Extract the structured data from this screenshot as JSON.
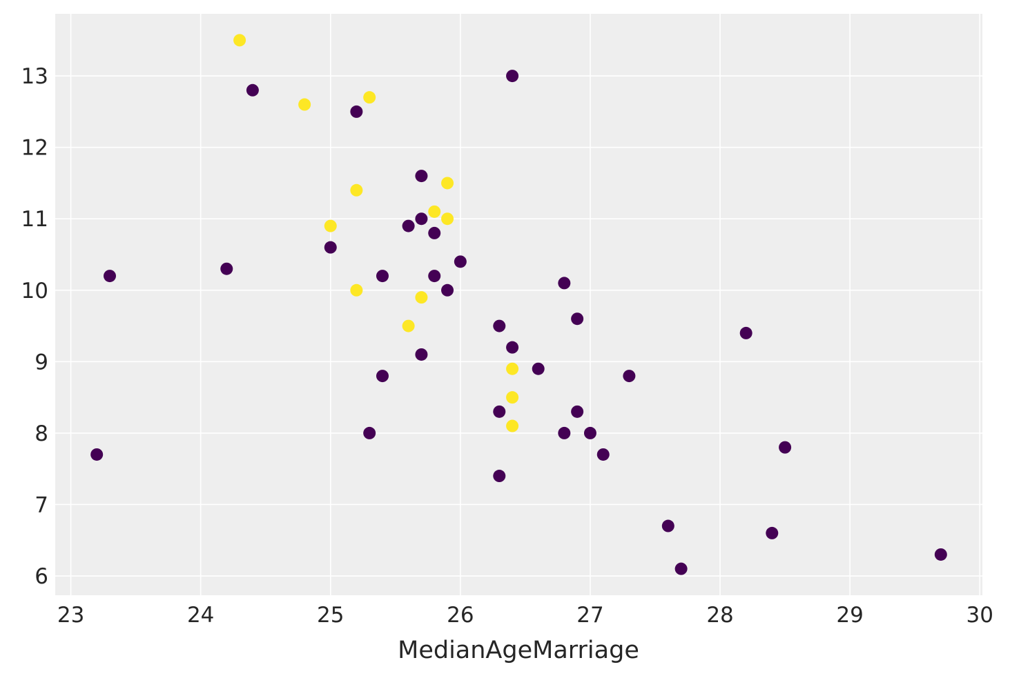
{
  "chart_data": {
    "type": "scatter",
    "title": "",
    "xlabel": "MedianAgeMarriage",
    "ylabel": "",
    "xlim": [
      22.88,
      30.02
    ],
    "ylim": [
      5.73,
      13.87
    ],
    "xticks": [
      23,
      24,
      25,
      26,
      27,
      28,
      29,
      30
    ],
    "yticks": [
      6,
      7,
      8,
      9,
      10,
      11,
      12,
      13
    ],
    "grid": true,
    "background_color": "#eeeeee",
    "series": [
      {
        "color": "#440154",
        "points": [
          [
            23.2,
            7.7
          ],
          [
            23.3,
            10.2
          ],
          [
            24.2,
            10.3
          ],
          [
            24.4,
            12.8
          ],
          [
            25.0,
            10.6
          ],
          [
            25.2,
            12.5
          ],
          [
            25.3,
            8.0
          ],
          [
            25.4,
            10.2
          ],
          [
            25.4,
            8.8
          ],
          [
            25.6,
            10.9
          ],
          [
            25.7,
            11.6
          ],
          [
            25.7,
            11.0
          ],
          [
            25.7,
            9.1
          ],
          [
            25.8,
            10.8
          ],
          [
            25.8,
            10.2
          ],
          [
            25.9,
            10.0
          ],
          [
            26.0,
            10.4
          ],
          [
            26.3,
            9.5
          ],
          [
            26.3,
            8.3
          ],
          [
            26.3,
            7.4
          ],
          [
            26.4,
            13.0
          ],
          [
            26.4,
            9.2
          ],
          [
            26.6,
            8.9
          ],
          [
            26.8,
            10.1
          ],
          [
            26.8,
            8.0
          ],
          [
            26.9,
            9.6
          ],
          [
            26.9,
            8.3
          ],
          [
            27.0,
            8.0
          ],
          [
            27.1,
            7.7
          ],
          [
            27.3,
            8.8
          ],
          [
            27.6,
            6.7
          ],
          [
            27.7,
            6.1
          ],
          [
            28.2,
            9.4
          ],
          [
            28.4,
            6.6
          ],
          [
            28.5,
            7.8
          ],
          [
            29.7,
            6.3
          ]
        ]
      },
      {
        "color": "#fde725",
        "points": [
          [
            24.3,
            13.5
          ],
          [
            24.8,
            12.6
          ],
          [
            25.0,
            10.9
          ],
          [
            25.2,
            11.4
          ],
          [
            25.2,
            10.0
          ],
          [
            25.3,
            12.7
          ],
          [
            25.6,
            9.5
          ],
          [
            25.7,
            9.9
          ],
          [
            25.8,
            11.1
          ],
          [
            25.9,
            11.5
          ],
          [
            25.9,
            11.0
          ],
          [
            26.4,
            8.9
          ],
          [
            26.4,
            8.5
          ],
          [
            26.4,
            8.1
          ]
        ]
      }
    ]
  }
}
